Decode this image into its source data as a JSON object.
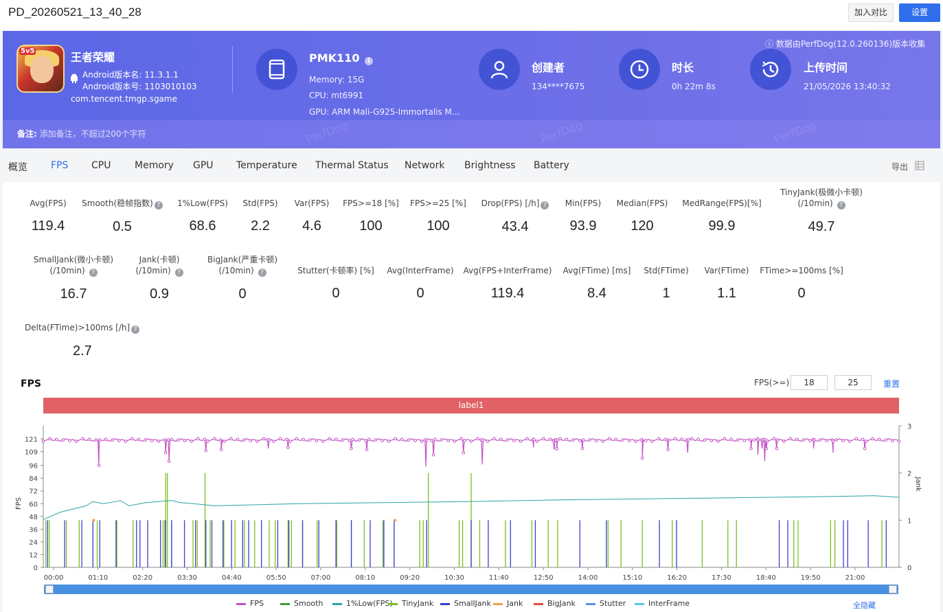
{
  "header": {
    "title": "PD_20260521_13_40_28",
    "compare_label": "加入对比",
    "settings_label": "设置"
  },
  "app": {
    "name": "王者荣耀",
    "icon_badge": "5v5",
    "android_version_name": "Android版本名: 11.3.1.1",
    "android_version_code": "Android版本号: 1103010103",
    "package": "com.tencent.tmgp.sgame"
  },
  "device": {
    "model": "PMK110",
    "memory": "Memory: 15G",
    "cpu": "CPU: mt6991",
    "gpu": "GPU: ARM Mali-G925-Immortalis M..."
  },
  "creator": {
    "label": "创建者",
    "value": "134****7675"
  },
  "duration": {
    "label": "时长",
    "value": "0h 22m 8s"
  },
  "upload": {
    "label": "上传时间",
    "value": "21/05/2026 13:40:32"
  },
  "source_note": "数据由PerfDog(12.0.260136)版本收集",
  "remark": {
    "label": "备注:",
    "placeholder": "添加备注，不超过200个字符"
  },
  "watermark": "PerfDog",
  "tabs": [
    "概览",
    "FPS",
    "CPU",
    "Memory",
    "GPU",
    "Temperature",
    "Thermal Status",
    "Network",
    "Brightness",
    "Battery"
  ],
  "active_tab": "FPS",
  "export_label": "导出",
  "metrics_row1": [
    {
      "label": "Avg(FPS)",
      "value": "119.4"
    },
    {
      "label": "Smooth(稳帧指数)",
      "value": "0.5"
    },
    {
      "label": "1%Low(FPS)",
      "value": "68.6"
    },
    {
      "label": "Std(FPS)",
      "value": "2.2"
    },
    {
      "label": "Var(FPS)",
      "value": "4.6"
    },
    {
      "label": "FPS>=18 [%]",
      "value": "100"
    },
    {
      "label": "FPS>=25 [%]",
      "value": "100"
    },
    {
      "label": "Drop(FPS) [/h]",
      "value": "43.4"
    },
    {
      "label": "Min(FPS)",
      "value": "93.9"
    },
    {
      "label": "Median(FPS)",
      "value": "120"
    },
    {
      "label": "MedRange(FPS)[%]",
      "value": "99.9"
    },
    {
      "label": "TinyJank(极微小卡顿)",
      "label2": "(/10min)",
      "value": "49.7"
    }
  ],
  "metrics_row2": [
    {
      "label": "SmallJank(微小卡顿)",
      "label2": "(/10min)",
      "value": "16.7"
    },
    {
      "label": "Jank(卡顿)",
      "label2": "(/10min)",
      "value": "0.9"
    },
    {
      "label": "BigJank(严重卡顿)",
      "label2": "(/10min)",
      "value": "0"
    },
    {
      "label": "Stutter(卡顿率) [%]",
      "value": "0"
    },
    {
      "label": "Avg(InterFrame)",
      "value": "0"
    },
    {
      "label": "Avg(FPS+InterFrame)",
      "value": "119.4"
    },
    {
      "label": "Avg(FTime) [ms]",
      "value": "8.4"
    },
    {
      "label": "Std(FTime)",
      "value": "1"
    },
    {
      "label": "Var(FTime)",
      "value": "1.1"
    },
    {
      "label": "FTime>=100ms [%]",
      "value": "0"
    }
  ],
  "metrics_row3": [
    {
      "label": "Delta(FTime)>100ms [/h]",
      "value": "2.7"
    }
  ],
  "fps_section": {
    "title": "FPS",
    "threshold_label": "FPS(>=)",
    "threshold1": "18",
    "threshold2": "25",
    "reset_label": "重置",
    "label_bar": "label1",
    "hide_all": "全隐藏"
  },
  "chart_data": {
    "type": "line",
    "xlabel": "",
    "ylabel": "FPS",
    "y2label": "Jank",
    "y_ticks": [
      0,
      12,
      24,
      36,
      48,
      60,
      72,
      84,
      96,
      109,
      121
    ],
    "y2_ticks": [
      0,
      1,
      2,
      3
    ],
    "x_ticks": [
      "00:00",
      "01:10",
      "02:20",
      "03:30",
      "04:40",
      "05:50",
      "07:00",
      "08:10",
      "09:20",
      "10:30",
      "11:40",
      "12:50",
      "14:00",
      "15:10",
      "16:20",
      "17:30",
      "18:40",
      "19:50",
      "21:00"
    ],
    "ylim": [
      0,
      121
    ],
    "y2lim": [
      0,
      3
    ],
    "series": [
      {
        "name": "FPS",
        "color": "#c24fc4",
        "baseline": 120,
        "dips": [
          [
            0.065,
            96
          ],
          [
            0.143,
            108
          ],
          [
            0.147,
            100
          ],
          [
            0.19,
            110
          ],
          [
            0.208,
            111
          ],
          [
            0.263,
            112
          ],
          [
            0.286,
            113
          ],
          [
            0.36,
            112
          ],
          [
            0.378,
            111
          ],
          [
            0.447,
            95
          ],
          [
            0.456,
            106
          ],
          [
            0.491,
            108
          ],
          [
            0.513,
            97
          ],
          [
            0.573,
            113
          ],
          [
            0.597,
            111
          ],
          [
            0.6,
            112
          ],
          [
            0.6,
            110
          ],
          [
            0.63,
            112
          ],
          [
            0.7,
            103
          ],
          [
            0.73,
            111
          ],
          [
            0.753,
            108
          ],
          [
            0.827,
            112
          ],
          [
            0.843,
            100
          ],
          [
            0.835,
            106
          ],
          [
            0.84,
            112
          ],
          [
            0.845,
            112
          ],
          [
            0.857,
            112
          ],
          [
            0.9,
            112
          ],
          [
            0.923,
            108
          ],
          [
            0.96,
            112
          ]
        ]
      },
      {
        "name": "Smooth",
        "color": "#3d9a3d"
      },
      {
        "name": "1%Low(FPS)",
        "color": "#2aa3a3",
        "points": [
          [
            0,
            45
          ],
          [
            0.02,
            52
          ],
          [
            0.05,
            58
          ],
          [
            0.058,
            62
          ],
          [
            0.07,
            60
          ],
          [
            0.085,
            62
          ],
          [
            0.09,
            63
          ],
          [
            0.1,
            58
          ],
          [
            0.12,
            61
          ],
          [
            0.15,
            63
          ],
          [
            0.16,
            61
          ],
          [
            0.175,
            60
          ],
          [
            0.2,
            58
          ],
          [
            0.3,
            60
          ],
          [
            0.4,
            61
          ],
          [
            0.5,
            62
          ],
          [
            0.6,
            63.5
          ],
          [
            0.7,
            64.5
          ],
          [
            0.8,
            65.5
          ],
          [
            0.9,
            66.5
          ],
          [
            0.97,
            67.5
          ],
          [
            1,
            66
          ]
        ]
      },
      {
        "name": "TinyJank",
        "color": "#7cbf1e"
      },
      {
        "name": "SmallJank",
        "color": "#3b3bcf"
      },
      {
        "name": "Jank",
        "color": "#f39c4a"
      },
      {
        "name": "BigJank",
        "color": "#e04a3a"
      },
      {
        "name": "Stutter",
        "color": "#5b8ee8"
      },
      {
        "name": "InterFrame",
        "color": "#56c8e8"
      }
    ]
  }
}
